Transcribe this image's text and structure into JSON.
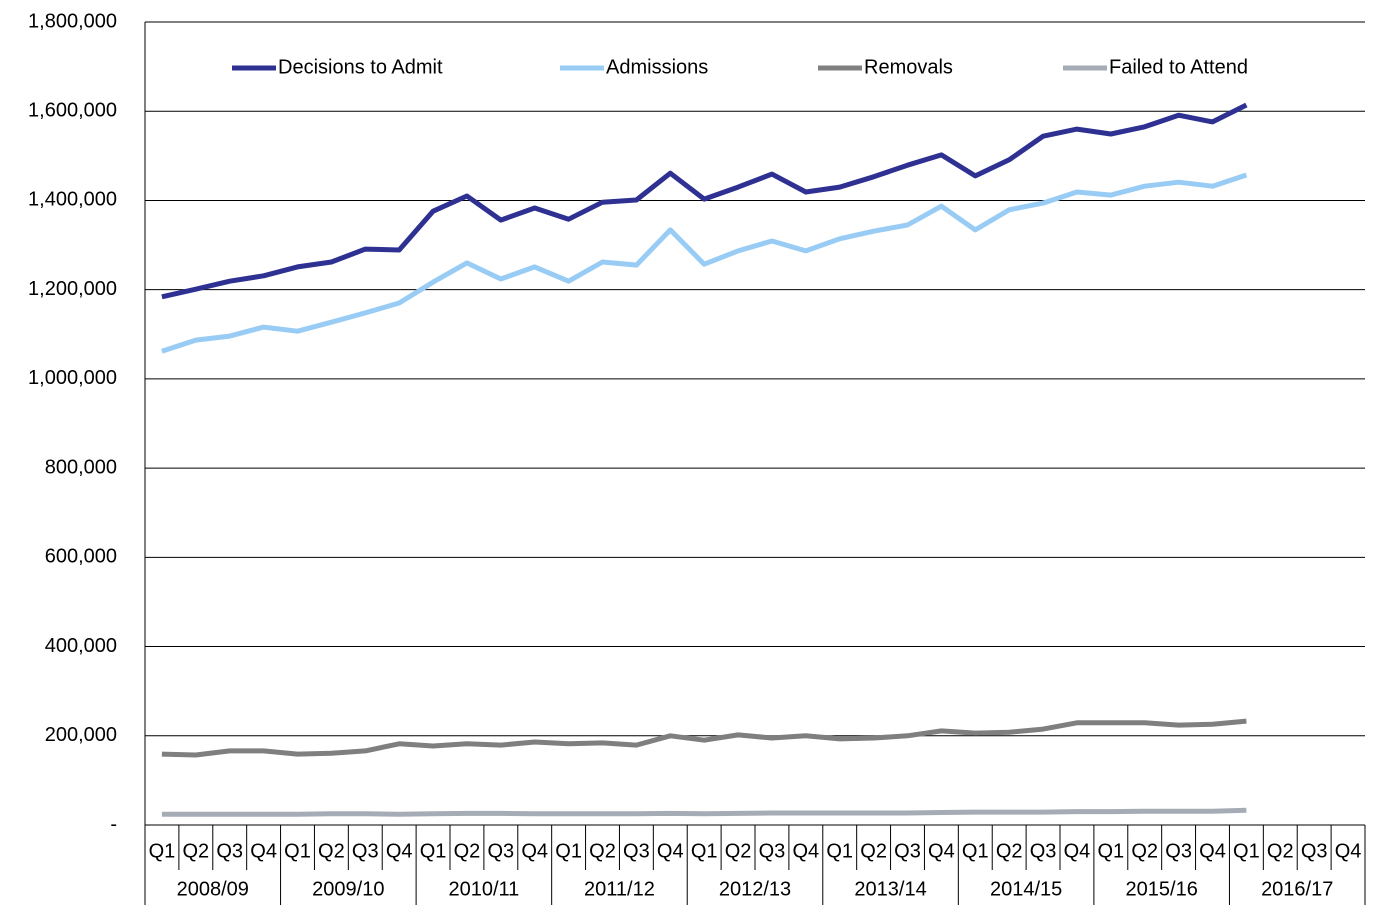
{
  "chart_data": {
    "type": "line",
    "categories": [
      "Q1",
      "Q2",
      "Q3",
      "Q4",
      "Q1",
      "Q2",
      "Q3",
      "Q4",
      "Q1",
      "Q2",
      "Q3",
      "Q4",
      "Q1",
      "Q2",
      "Q3",
      "Q4",
      "Q1",
      "Q2",
      "Q3",
      "Q4",
      "Q1",
      "Q2",
      "Q3",
      "Q4",
      "Q1",
      "Q2",
      "Q3",
      "Q4",
      "Q1",
      "Q2",
      "Q3",
      "Q4",
      "Q1",
      "Q2",
      "Q3",
      "Q4"
    ],
    "category_groups": [
      "2008/09",
      "2009/10",
      "2010/11",
      "2011/12",
      "2012/13",
      "2013/14",
      "2014/15",
      "2015/16",
      "2016/17"
    ],
    "series": [
      {
        "name": "Decisions to Admit",
        "color": "#2e3192",
        "values": [
          1184000,
          1201000,
          1219000,
          1231000,
          1251000,
          1262000,
          1291000,
          1289000,
          1376000,
          1410000,
          1356000,
          1383000,
          1358000,
          1396000,
          1401000,
          1461000,
          1403000,
          1430000,
          1459000,
          1419000,
          1430000,
          1453000,
          1479000,
          1502000,
          1455000,
          1491000,
          1544000,
          1560000,
          1549000,
          1565000,
          1591000,
          1576000,
          1614000,
          null,
          null,
          null
        ]
      },
      {
        "name": "Admissions",
        "color": "#99ccf5",
        "values": [
          1062000,
          1087000,
          1096000,
          1116000,
          1107000,
          1127000,
          1148000,
          1170000,
          1217000,
          1260000,
          1224000,
          1251000,
          1219000,
          1262000,
          1255000,
          1334000,
          1257000,
          1287000,
          1309000,
          1287000,
          1314000,
          1331000,
          1345000,
          1387000,
          1334000,
          1379000,
          1394000,
          1419000,
          1412000,
          1432000,
          1441000,
          1432000,
          1457000,
          null,
          null,
          null
        ]
      },
      {
        "name": "Removals",
        "color": "#7f7f7f",
        "values": [
          159000,
          157000,
          166000,
          166000,
          159000,
          161000,
          166000,
          182000,
          177000,
          182000,
          179000,
          186000,
          182000,
          184000,
          179000,
          200000,
          190000,
          202000,
          195000,
          200000,
          193000,
          195000,
          200000,
          211000,
          206000,
          208000,
          215000,
          229000,
          229000,
          229000,
          224000,
          226000,
          233000,
          null,
          null,
          null
        ]
      },
      {
        "name": "Failed to Attend",
        "color": "#a6acb5",
        "values": [
          24000,
          24000,
          24000,
          24000,
          24000,
          25000,
          25000,
          24000,
          25000,
          26000,
          26000,
          25000,
          25000,
          25000,
          25000,
          26000,
          25000,
          26000,
          27000,
          27000,
          27000,
          27000,
          27000,
          28000,
          29000,
          29000,
          29000,
          30000,
          30000,
          31000,
          31000,
          31000,
          33000,
          null,
          null,
          null
        ]
      }
    ],
    "ylim": [
      0,
      1800000
    ],
    "yticks": [
      {
        "value": 0,
        "label": "-"
      },
      {
        "value": 200000,
        "label": "200,000"
      },
      {
        "value": 400000,
        "label": "400,000"
      },
      {
        "value": 600000,
        "label": "600,000"
      },
      {
        "value": 800000,
        "label": "800,000"
      },
      {
        "value": 1000000,
        "label": "1,000,000"
      },
      {
        "value": 1200000,
        "label": "1,200,000"
      },
      {
        "value": 1400000,
        "label": "1,400,000"
      },
      {
        "value": 1600000,
        "label": "1,600,000"
      },
      {
        "value": 1800000,
        "label": "1,800,000"
      }
    ],
    "grid": true,
    "legend": "top"
  }
}
